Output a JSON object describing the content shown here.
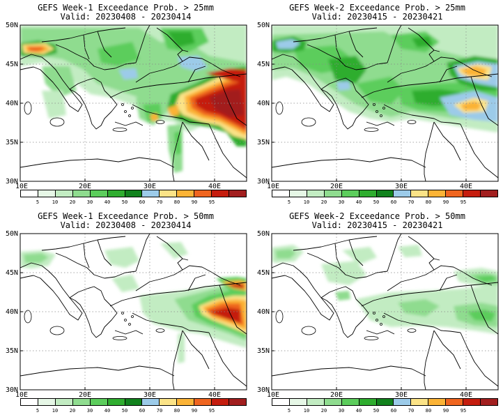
{
  "legend": {
    "colors": [
      "#ffffff",
      "#e6f7e6",
      "#c2ecc2",
      "#8fdc8f",
      "#5ccd5c",
      "#2fad2f",
      "#11821d",
      "#9ccbe9",
      "#fbe387",
      "#fbb336",
      "#ef651f",
      "#c51d0e",
      "#a21f1f"
    ],
    "ticks": [
      "5",
      "10",
      "20",
      "30",
      "40",
      "50",
      "60",
      "70",
      "80",
      "90",
      "95"
    ]
  },
  "panels": [
    {
      "title": "GEFS Week-1 Exceedance Prob. > 25mm",
      "valid": "Valid: 20230408 - 20230414",
      "lat_labels": [
        "50N",
        "45N",
        "40N",
        "35N",
        "30N"
      ],
      "lon_labels": [
        "10E",
        "20E",
        "30E",
        "40E"
      ]
    },
    {
      "title": "GEFS Week-2 Exceedance Prob. > 25mm",
      "valid": "Valid: 20230415 - 20230421",
      "lat_labels": [
        "50N",
        "45N",
        "40N",
        "35N",
        "30N"
      ],
      "lon_labels": [
        "10E",
        "20E",
        "30E",
        "40E"
      ]
    },
    {
      "title": "GEFS Week-1 Exceedance Prob. > 50mm",
      "valid": "Valid: 20230408 - 20230414",
      "lat_labels": [
        "50N",
        "45N",
        "40N",
        "35N",
        "30N"
      ],
      "lon_labels": [
        "10E",
        "20E",
        "30E",
        "40E"
      ]
    },
    {
      "title": "GEFS Week-2 Exceedance Prob. > 50mm",
      "valid": "Valid: 20230415 - 20230421",
      "lat_labels": [
        "50N",
        "45N",
        "40N",
        "35N",
        "30N"
      ],
      "lon_labels": [
        "10E",
        "20E",
        "30E",
        "40E"
      ]
    }
  ]
}
